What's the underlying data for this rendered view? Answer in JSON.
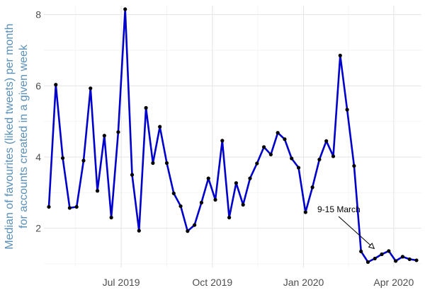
{
  "chart_data": {
    "type": "line",
    "title": "",
    "xlabel": "",
    "ylabel": "Median of favourites (liked tweets) per month\nfor accounts created in a given week",
    "ylim": [
      0.9,
      8.25
    ],
    "xlim": [
      "2019-04-14",
      "2020-04-29"
    ],
    "y_ticks": [
      2,
      4,
      6,
      8
    ],
    "x_ticks": [
      {
        "date": "2019-07-01",
        "label": "Jul 2019"
      },
      {
        "date": "2019-10-01",
        "label": "Oct 2019"
      },
      {
        "date": "2020-01-01",
        "label": "Jan 2020"
      },
      {
        "date": "2020-04-01",
        "label": "Apr 2020"
      }
    ],
    "grid": true,
    "series": [
      {
        "x": [
          "2019-04-19",
          "2019-04-26",
          "2019-05-03",
          "2019-05-10",
          "2019-05-17",
          "2019-05-24",
          "2019-05-31",
          "2019-06-07",
          "2019-06-14",
          "2019-06-21",
          "2019-06-28",
          "2019-07-05",
          "2019-07-12",
          "2019-07-19",
          "2019-07-26",
          "2019-08-02",
          "2019-08-09",
          "2019-08-16",
          "2019-08-23",
          "2019-08-30",
          "2019-09-06",
          "2019-09-13",
          "2019-09-20",
          "2019-09-27",
          "2019-10-04",
          "2019-10-11",
          "2019-10-18",
          "2019-10-25",
          "2019-11-01",
          "2019-11-08",
          "2019-11-15",
          "2019-11-22",
          "2019-11-29",
          "2019-12-06",
          "2019-12-13",
          "2019-12-20",
          "2019-12-27",
          "2020-01-03",
          "2020-01-10",
          "2020-01-17",
          "2020-01-24",
          "2020-01-31",
          "2020-02-07",
          "2020-02-14",
          "2020-02-21",
          "2020-02-28",
          "2020-03-06",
          "2020-03-13",
          "2020-03-20",
          "2020-03-27",
          "2020-04-03",
          "2020-04-10",
          "2020-04-17",
          "2020-04-24"
        ],
        "y": [
          2.6,
          6.03,
          3.97,
          2.57,
          2.6,
          3.9,
          5.93,
          3.05,
          4.6,
          2.3,
          4.7,
          8.15,
          3.5,
          1.93,
          5.38,
          3.83,
          4.85,
          3.83,
          2.98,
          2.62,
          1.92,
          2.09,
          2.72,
          3.4,
          2.8,
          4.46,
          2.3,
          3.27,
          2.66,
          3.4,
          3.82,
          4.28,
          4.07,
          4.68,
          4.5,
          3.96,
          3.7,
          2.45,
          3.15,
          3.93,
          4.45,
          4.02,
          6.85,
          5.33,
          3.75,
          1.35,
          1.05,
          1.15,
          1.27,
          1.36,
          1.08,
          1.2,
          1.13,
          1.1
        ]
      }
    ],
    "line_color": "#0000cc",
    "marker_color": "#000000",
    "annotation": {
      "text": "9-15 March",
      "target_date": "2020-03-13",
      "target_y": 1.35
    }
  },
  "colors": {
    "ylabel": "#5a8fb8",
    "tick_label": "#4d4d4d",
    "grid_major": "#e3e3e3",
    "grid_minor": "#f2f2f2"
  }
}
